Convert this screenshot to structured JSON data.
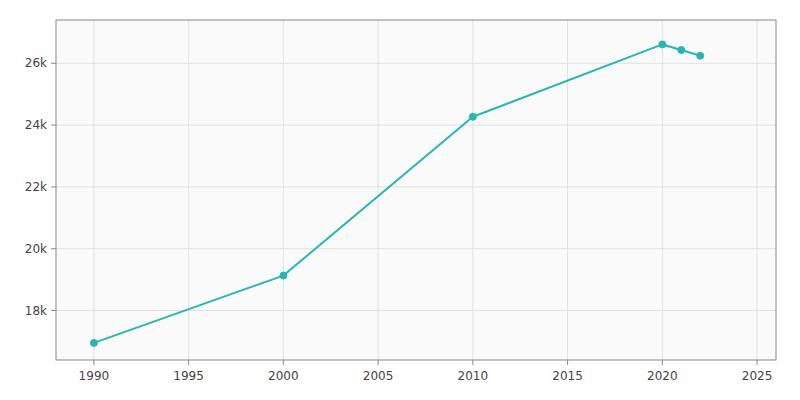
{
  "chart_data": {
    "type": "line",
    "x": [
      1990,
      2000,
      2010,
      2020,
      2021,
      2022
    ],
    "values": [
      16953,
      19131,
      24270,
      26610,
      26430,
      26244
    ],
    "color": "#2ab5b5",
    "marker": "circle",
    "xlim": [
      1988,
      2026
    ],
    "ylim": [
      16400,
      27400
    ],
    "xticks": [
      1990,
      1995,
      2000,
      2005,
      2010,
      2015,
      2020,
      2025
    ],
    "yticks": [
      {
        "value": 18000,
        "label": "18k"
      },
      {
        "value": 20000,
        "label": "20k"
      },
      {
        "value": 22000,
        "label": "22k"
      },
      {
        "value": 24000,
        "label": "24k"
      },
      {
        "value": 26000,
        "label": "26k"
      }
    ],
    "grid": true
  }
}
